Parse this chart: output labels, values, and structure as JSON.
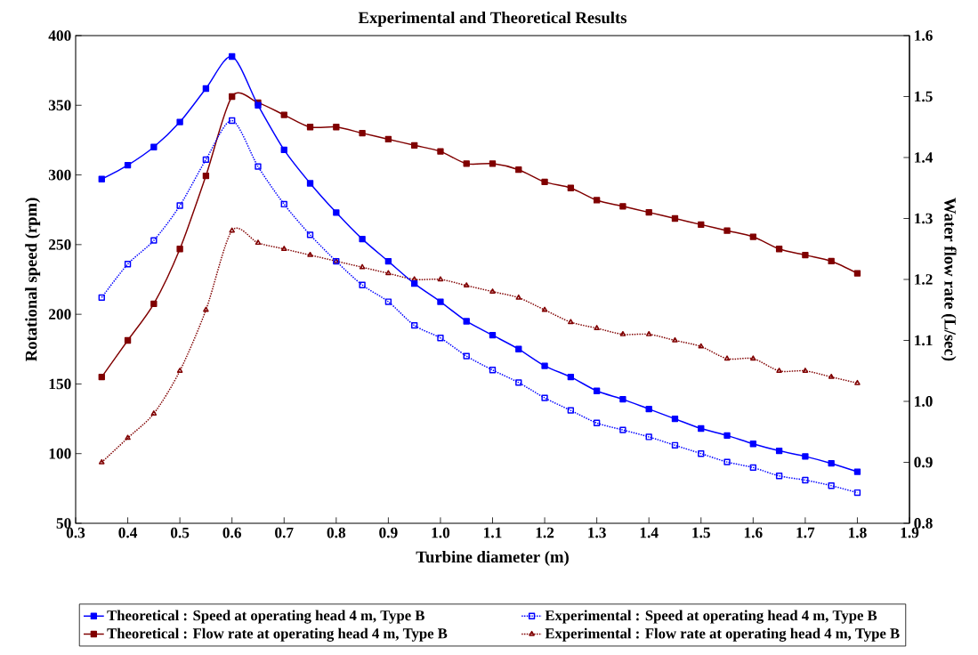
{
  "chart_data": {
    "type": "line",
    "title": "Experimental and Theoretical Results",
    "xlabel": "Turbine diameter (m)",
    "ylabel": "Rotational speed (rpm)",
    "y2label": "Water flow rate (L/sec)",
    "x": [
      0.35,
      0.4,
      0.45,
      0.5,
      0.55,
      0.6,
      0.65,
      0.7,
      0.75,
      0.8,
      0.85,
      0.9,
      0.95,
      1.0,
      1.05,
      1.1,
      1.15,
      1.2,
      1.25,
      1.3,
      1.35,
      1.4,
      1.45,
      1.5,
      1.55,
      1.6,
      1.65,
      1.7,
      1.75,
      1.8
    ],
    "series": [
      {
        "name": "Theoretical : Speed at operating head 4 m, Type B",
        "color": "#0000ff",
        "marker": "square",
        "line_style": "solid",
        "values": [
          297,
          307,
          320,
          338,
          362,
          385,
          350,
          318,
          294,
          273,
          254,
          238,
          222,
          209,
          195,
          185,
          175,
          163,
          155,
          145,
          139,
          132,
          125,
          118,
          113,
          107,
          102,
          98,
          93,
          87
        ]
      },
      {
        "name": "Experimental : Speed at operating head 4 m, Type B",
        "color": "#0000ff",
        "marker": "square_open",
        "line_style": "dotted",
        "values": [
          212,
          236,
          253,
          278,
          311,
          339,
          306,
          279,
          257,
          238,
          221,
          209,
          192,
          183,
          170,
          160,
          151,
          140,
          131,
          122,
          117,
          112,
          106,
          100,
          94,
          90,
          84,
          81,
          77,
          72
        ]
      },
      {
        "name": "Theoretical : Flow rate at operating head 4 m, Type B",
        "color": "#800000",
        "marker": "square",
        "line_style": "solid",
        "axis": "y2",
        "values": [
          1.04,
          1.1,
          1.16,
          1.25,
          1.37,
          1.5,
          1.49,
          1.47,
          1.45,
          1.45,
          1.44,
          1.43,
          1.42,
          1.41,
          1.39,
          1.39,
          1.38,
          1.36,
          1.35,
          1.33,
          1.32,
          1.31,
          1.3,
          1.29,
          1.28,
          1.27,
          1.25,
          1.24,
          1.23,
          1.21
        ]
      },
      {
        "name": "Experimental : Flow rate at operating head 4 m, Type B",
        "color": "#800000",
        "marker": "triangle",
        "line_style": "dotted",
        "axis": "y2",
        "values": [
          0.9,
          0.94,
          0.98,
          1.05,
          1.15,
          1.28,
          1.26,
          1.25,
          1.24,
          1.23,
          1.22,
          1.21,
          1.2,
          1.2,
          1.19,
          1.18,
          1.17,
          1.15,
          1.13,
          1.12,
          1.11,
          1.11,
          1.1,
          1.09,
          1.07,
          1.07,
          1.05,
          1.05,
          1.04,
          1.03
        ]
      }
    ],
    "xlim": [
      0.3,
      1.9
    ],
    "xticks": [
      0.3,
      0.4,
      0.5,
      0.6,
      0.7,
      0.8,
      0.9,
      {
        "value": 1.0,
        "label": "1.0"
      },
      1.1,
      1.2,
      1.3,
      1.4,
      1.5,
      1.6,
      1.7,
      1.8,
      1.9
    ],
    "ylim": [
      50,
      400
    ],
    "yticks": [
      50,
      100,
      150,
      200,
      250,
      300,
      350,
      400
    ],
    "y2lim": [
      0.8,
      1.6
    ],
    "y2ticks": [
      0.8,
      0.9,
      {
        "value": 1.0,
        "label": "1.0"
      },
      1.1,
      1.2,
      1.3,
      1.4,
      1.5,
      1.6
    ],
    "grid": false,
    "legend": "bottom"
  }
}
